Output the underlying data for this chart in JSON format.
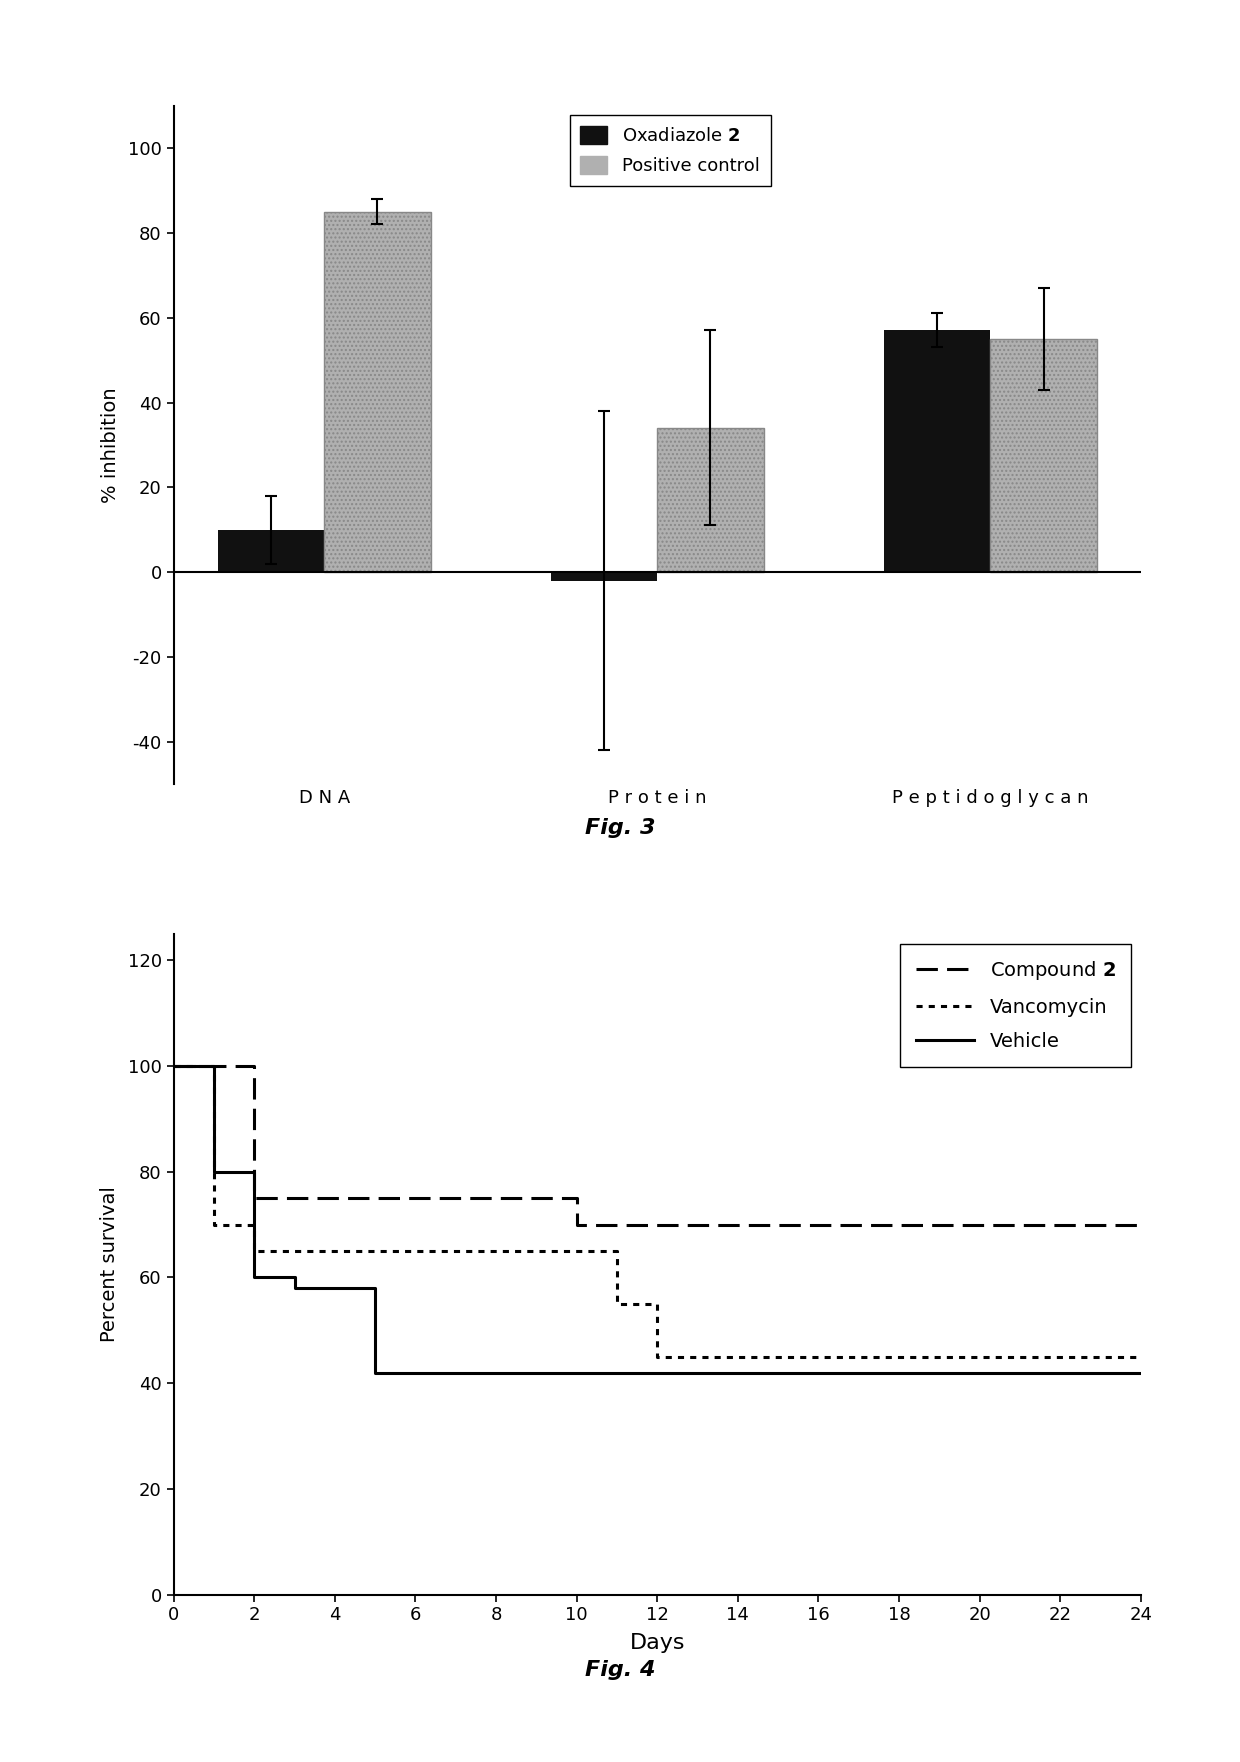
{
  "fig3": {
    "categories": [
      "D N A",
      "P r o t e i n",
      "P e p t i d o g l y c a n"
    ],
    "oxadiazole_values": [
      10,
      -2,
      57
    ],
    "oxadiazole_errors": [
      8,
      40,
      4
    ],
    "positive_values": [
      85,
      34,
      55
    ],
    "positive_errors": [
      3,
      23,
      12
    ],
    "bar_color_black": "#111111",
    "bar_color_gray": "#b0b0b0",
    "ylabel": "% inhibition",
    "ylim": [
      -50,
      110
    ],
    "yticks": [
      -40,
      -20,
      0,
      20,
      40,
      60,
      80,
      100
    ],
    "legend_labels": [
      "Oxadiazole 2",
      "Positive control"
    ],
    "title": "Fig. 3",
    "bar_width": 0.32,
    "capsize": 4
  },
  "fig4": {
    "compound2_x": [
      0,
      1,
      2,
      3,
      9,
      10,
      24
    ],
    "compound2_y": [
      100,
      100,
      75,
      75,
      75,
      70,
      70
    ],
    "vancomycin_x": [
      0,
      1,
      2,
      3,
      4,
      10,
      11,
      12,
      13,
      24
    ],
    "vancomycin_y": [
      100,
      70,
      65,
      65,
      65,
      65,
      55,
      45,
      45,
      45
    ],
    "vehicle_x": [
      0,
      1,
      2,
      3,
      5,
      6,
      7,
      24
    ],
    "vehicle_y": [
      100,
      80,
      60,
      58,
      42,
      42,
      42,
      42
    ],
    "xlabel": "Days",
    "ylabel": "Percent survival",
    "ylim": [
      0,
      125
    ],
    "xlim": [
      0,
      24
    ],
    "yticks": [
      0,
      20,
      40,
      60,
      80,
      100,
      120
    ],
    "xticks": [
      0,
      2,
      4,
      6,
      8,
      10,
      12,
      14,
      16,
      18,
      20,
      22,
      24
    ],
    "legend_labels": [
      "Compound 2",
      "Vancomycin",
      "Vehicle"
    ],
    "title": "Fig. 4"
  },
  "background_color": "#ffffff",
  "text_color": "#000000",
  "font_family": "DejaVu Sans"
}
